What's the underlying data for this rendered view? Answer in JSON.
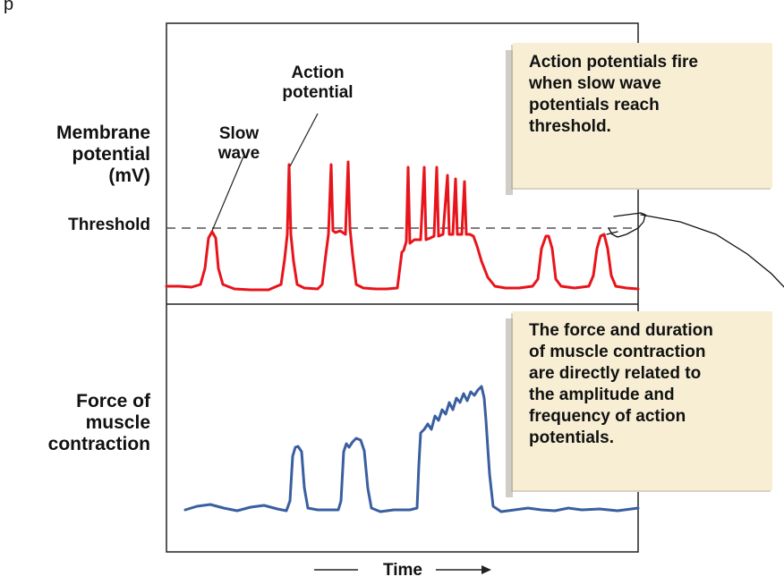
{
  "top_left_char": "p",
  "y_labels": {
    "top": [
      "Membrane",
      "potential",
      "(mV)"
    ],
    "bottom": [
      "Force of",
      "muscle",
      "contraction"
    ]
  },
  "threshold_label": "Threshold",
  "callouts": {
    "action_potential": [
      "Action",
      "potential"
    ],
    "slow_wave": [
      "Slow",
      "wave"
    ]
  },
  "info_top": [
    "Action potentials fire",
    "when slow wave",
    "potentials reach",
    "threshold."
  ],
  "info_bottom": [
    "The force and duration",
    "of muscle contraction",
    "are directly related to",
    "the amplitude and",
    "frequency of action",
    "potentials."
  ],
  "x_label": "Time",
  "colors": {
    "membrane_trace": "#e8141b",
    "force_trace": "#3a5fa0",
    "info_box_bg": "#f7eed4",
    "threshold_line": "#555555"
  }
}
